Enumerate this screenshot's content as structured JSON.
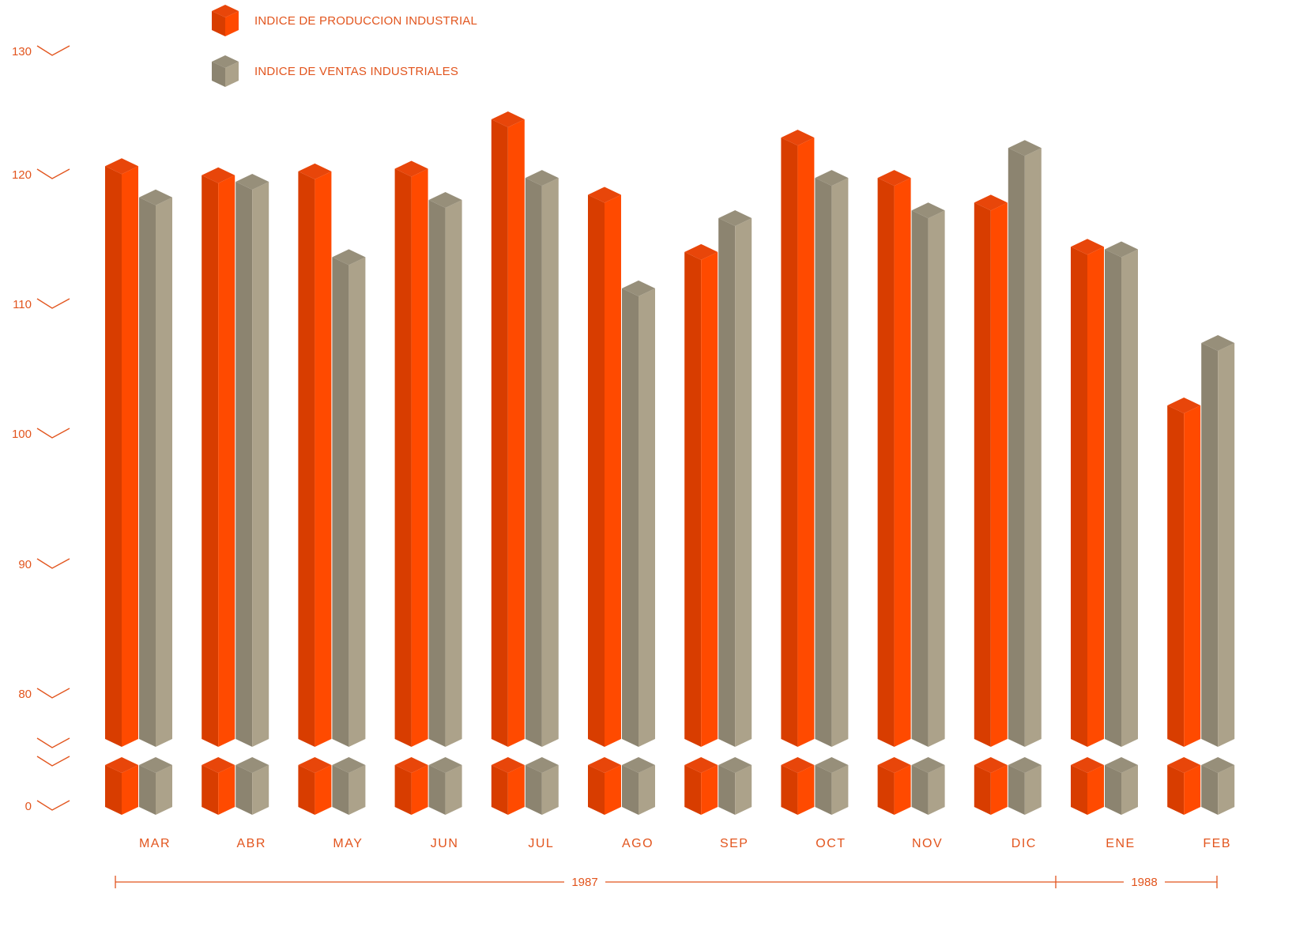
{
  "colors": {
    "production": "#ff4a00",
    "production_side": "#d83d00",
    "production_top": "#e8460a",
    "sales": "#aca28a",
    "sales_side": "#8c8470",
    "sales_top": "#978f7a",
    "text": "#e2551e"
  },
  "chart_data": {
    "type": "bar",
    "title": "",
    "xlabel": "",
    "ylabel": "",
    "ylim": [
      80,
      130
    ],
    "axis_break": true,
    "yticks": [
      "0",
      "80",
      "90",
      "100",
      "110",
      "120",
      "130"
    ],
    "categories": [
      "MAR",
      "ABR",
      "MAY",
      "JUN",
      "JUL",
      "AGO",
      "SEP",
      "OCT",
      "NOV",
      "DIC",
      "ENE",
      "FEB"
    ],
    "years": [
      {
        "label": "1987",
        "categories": [
          "MAR",
          "ABR",
          "MAY",
          "JUN",
          "JUL",
          "AGO",
          "SEP",
          "OCT",
          "NOV",
          "DIC"
        ]
      },
      {
        "label": "1988",
        "categories": [
          "ENE",
          "FEB"
        ]
      }
    ],
    "series": [
      {
        "name": "INDICE DE PRODUCCION INDUSTRIAL",
        "values": [
          121.2,
          120.5,
          120.8,
          121.0,
          124.8,
          119.0,
          114.6,
          123.4,
          120.3,
          118.4,
          115.0,
          102.8
        ]
      },
      {
        "name": "INDICE DE VENTAS INDUSTRIALES",
        "values": [
          118.8,
          120.0,
          114.2,
          118.6,
          120.3,
          111.8,
          117.2,
          120.3,
          117.8,
          122.6,
          114.8,
          107.6
        ]
      }
    ],
    "legend_position": "top-left",
    "grid": false
  }
}
